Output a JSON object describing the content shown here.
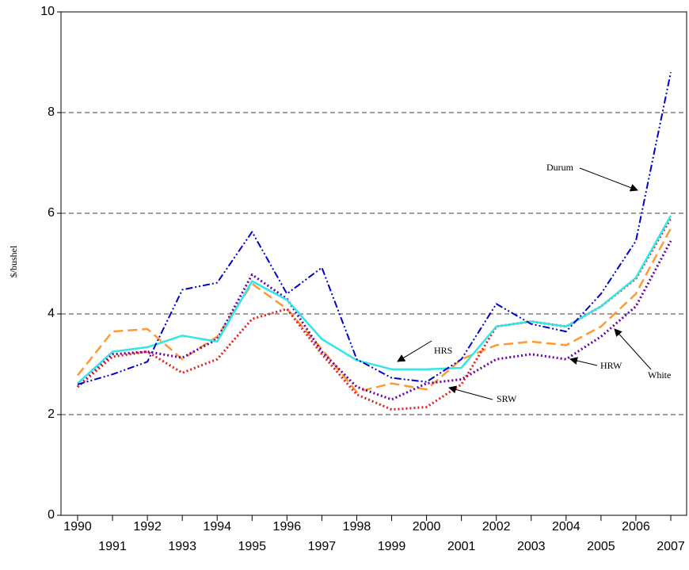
{
  "chart_data": {
    "type": "line",
    "y_label": "$/bushel",
    "categories": [
      "1990",
      "1991",
      "1992",
      "1993",
      "1994",
      "1995",
      "1996",
      "1997",
      "1998",
      "1999",
      "2000",
      "2001",
      "2002",
      "2003",
      "2004",
      "2005",
      "2006",
      "2007"
    ],
    "series": [
      {
        "name": "Durum",
        "color": "#0000cc",
        "style": "dashdot",
        "values": [
          2.6,
          2.8,
          3.05,
          4.48,
          4.62,
          5.63,
          4.4,
          4.92,
          3.1,
          2.73,
          2.65,
          3.1,
          4.2,
          3.8,
          3.65,
          4.4,
          5.45,
          8.8
        ]
      },
      {
        "name": "HRS",
        "color": "#33e6e6",
        "style": "solid",
        "values": [
          2.62,
          3.25,
          3.34,
          3.57,
          3.45,
          4.65,
          4.28,
          3.5,
          3.08,
          2.9,
          2.9,
          2.93,
          3.75,
          3.85,
          3.75,
          4.15,
          4.72,
          5.95
        ]
      },
      {
        "name": "HRW",
        "color": "#6600aa",
        "style": "dotted",
        "values": [
          2.55,
          3.2,
          3.25,
          3.13,
          3.5,
          4.78,
          4.3,
          3.25,
          2.55,
          2.3,
          2.62,
          2.7,
          3.1,
          3.2,
          3.1,
          3.55,
          4.15,
          5.45
        ]
      },
      {
        "name": "SRW",
        "color": "#e61e1e",
        "style": "dotted",
        "values": [
          2.55,
          3.15,
          3.25,
          2.83,
          3.1,
          3.9,
          4.1,
          3.2,
          2.4,
          2.1,
          2.15,
          2.6,
          3.75,
          3.85,
          3.75,
          4.15,
          4.7,
          5.9
        ]
      },
      {
        "name": "White",
        "color": "#ff9933",
        "style": "dashed",
        "values": [
          2.78,
          3.65,
          3.7,
          3.1,
          3.55,
          4.6,
          4.1,
          3.3,
          2.45,
          2.62,
          2.5,
          3.1,
          3.38,
          3.45,
          3.38,
          3.75,
          4.4,
          5.7
        ]
      }
    ],
    "ylim": [
      0,
      10
    ],
    "yticks": [
      0,
      2,
      4,
      6,
      8,
      10
    ],
    "grid": true
  }
}
